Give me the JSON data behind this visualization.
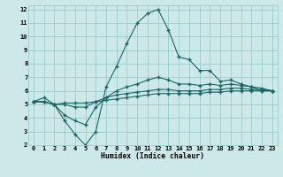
{
  "title": "",
  "xlabel": "Humidex (Indice chaleur)",
  "bg_color": "#cce8e8",
  "grid_color": "#99cccc",
  "line_color": "#1a6666",
  "x_values": [
    0,
    1,
    2,
    3,
    4,
    5,
    6,
    7,
    8,
    9,
    10,
    11,
    12,
    13,
    14,
    15,
    16,
    17,
    18,
    19,
    20,
    21,
    22,
    23
  ],
  "line1": [
    5.2,
    5.5,
    5.0,
    3.8,
    2.8,
    2.0,
    3.0,
    6.3,
    7.8,
    9.5,
    11.0,
    11.7,
    12.0,
    10.5,
    8.5,
    8.3,
    7.5,
    7.5,
    6.7,
    6.8,
    6.5,
    6.3,
    6.0,
    6.0
  ],
  "line2": [
    5.2,
    5.2,
    5.0,
    4.2,
    3.8,
    3.5,
    4.8,
    5.5,
    6.0,
    6.3,
    6.5,
    6.8,
    7.0,
    6.8,
    6.5,
    6.5,
    6.4,
    6.5,
    6.4,
    6.5,
    6.4,
    6.3,
    6.2,
    6.0
  ],
  "line3": [
    5.2,
    5.2,
    5.0,
    5.0,
    4.8,
    4.8,
    5.2,
    5.5,
    5.7,
    5.8,
    5.9,
    6.0,
    6.1,
    6.1,
    6.0,
    6.0,
    6.0,
    6.1,
    6.1,
    6.2,
    6.2,
    6.1,
    6.1,
    6.0
  ],
  "line4": [
    5.2,
    5.2,
    5.0,
    5.1,
    5.1,
    5.1,
    5.2,
    5.3,
    5.4,
    5.5,
    5.6,
    5.7,
    5.8,
    5.8,
    5.8,
    5.8,
    5.8,
    5.9,
    5.9,
    6.0,
    6.0,
    6.0,
    6.0,
    6.0
  ],
  "xlim": [
    -0.5,
    23.5
  ],
  "ylim": [
    2,
    12.3
  ],
  "yticks": [
    2,
    3,
    4,
    5,
    6,
    7,
    8,
    9,
    10,
    11,
    12
  ],
  "xticks": [
    0,
    1,
    2,
    3,
    4,
    5,
    6,
    7,
    8,
    9,
    10,
    11,
    12,
    13,
    14,
    15,
    16,
    17,
    18,
    19,
    20,
    21,
    22,
    23
  ]
}
